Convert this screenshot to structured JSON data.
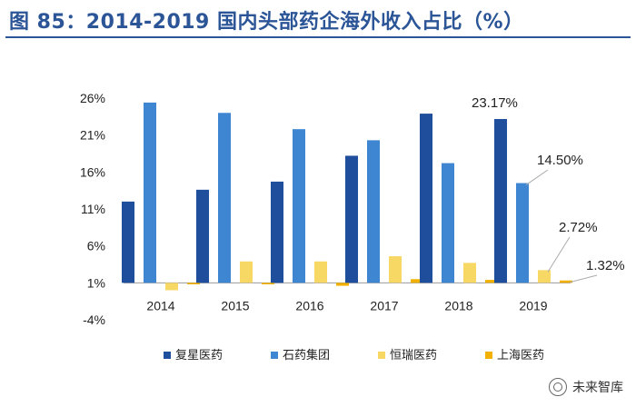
{
  "title": "图 85：2014-2019 国内头部药企海外收入占比（%）",
  "watermark": "未来智库",
  "chart_data": {
    "type": "bar",
    "categories": [
      "2014",
      "2015",
      "2016",
      "2017",
      "2018",
      "2019"
    ],
    "series": [
      {
        "name": "复星医药",
        "color": "#1f4e9c",
        "values": [
          12.0,
          13.6,
          14.7,
          18.2,
          23.9,
          23.17
        ]
      },
      {
        "name": "石药集团",
        "color": "#3f86d2",
        "values": [
          25.4,
          24.0,
          21.8,
          20.3,
          17.2,
          14.5
        ]
      },
      {
        "name": "恒瑞医药",
        "color": "#f8d865",
        "values": [
          0,
          3.9,
          3.9,
          4.6,
          3.7,
          2.72
        ]
      },
      {
        "name": "上海医药",
        "color": "#f2b100",
        "values": [
          0.8,
          0.8,
          0.6,
          1.5,
          1.4,
          1.32
        ]
      }
    ],
    "yticks": [
      "26%",
      "21%",
      "16%",
      "11%",
      "6%",
      "1%",
      "-4%"
    ],
    "ylim": [
      -4,
      26
    ],
    "annotations": [
      {
        "series": 0,
        "index": 5,
        "text": "23.17%"
      },
      {
        "series": 1,
        "index": 5,
        "text": "14.50%"
      },
      {
        "series": 2,
        "index": 5,
        "text": "2.72%"
      },
      {
        "series": 3,
        "index": 5,
        "text": "1.32%"
      }
    ],
    "legend_position": "bottom"
  }
}
